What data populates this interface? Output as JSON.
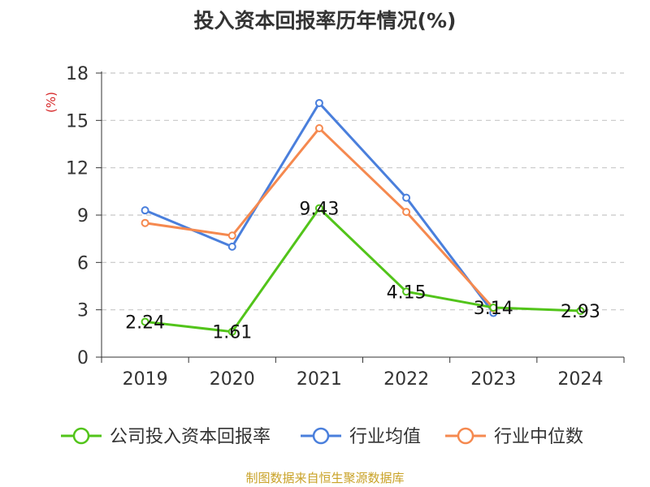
{
  "title": "投入资本回报率历年情况(%)",
  "source": "制图数据来自恒生聚源数据库",
  "chart_data": {
    "type": "line",
    "title": "投入资本回报率历年情况(%)",
    "ylabel": "(%)",
    "xlabel": "",
    "categories": [
      "2019",
      "2020",
      "2021",
      "2022",
      "2023",
      "2024"
    ],
    "ylim": [
      0,
      18
    ],
    "yticks": [
      0,
      3,
      6,
      9,
      12,
      15,
      18
    ],
    "grid": "horizontal-dashed",
    "legend_position": "bottom",
    "series": [
      {
        "name": "公司投入资本回报率",
        "color": "#52c41a",
        "values": [
          2.24,
          1.61,
          9.43,
          4.15,
          3.14,
          2.93
        ],
        "data_labels": [
          "2.24",
          "1.61",
          "9.43",
          "4.15",
          "3.14",
          "2.93"
        ]
      },
      {
        "name": "行业均值",
        "color": "#4a7fdc",
        "values": [
          9.3,
          7.0,
          16.1,
          10.1,
          2.8,
          null
        ]
      },
      {
        "name": "行业中位数",
        "color": "#f5894f",
        "values": [
          8.5,
          7.7,
          14.5,
          9.2,
          3.1,
          null
        ]
      }
    ]
  }
}
